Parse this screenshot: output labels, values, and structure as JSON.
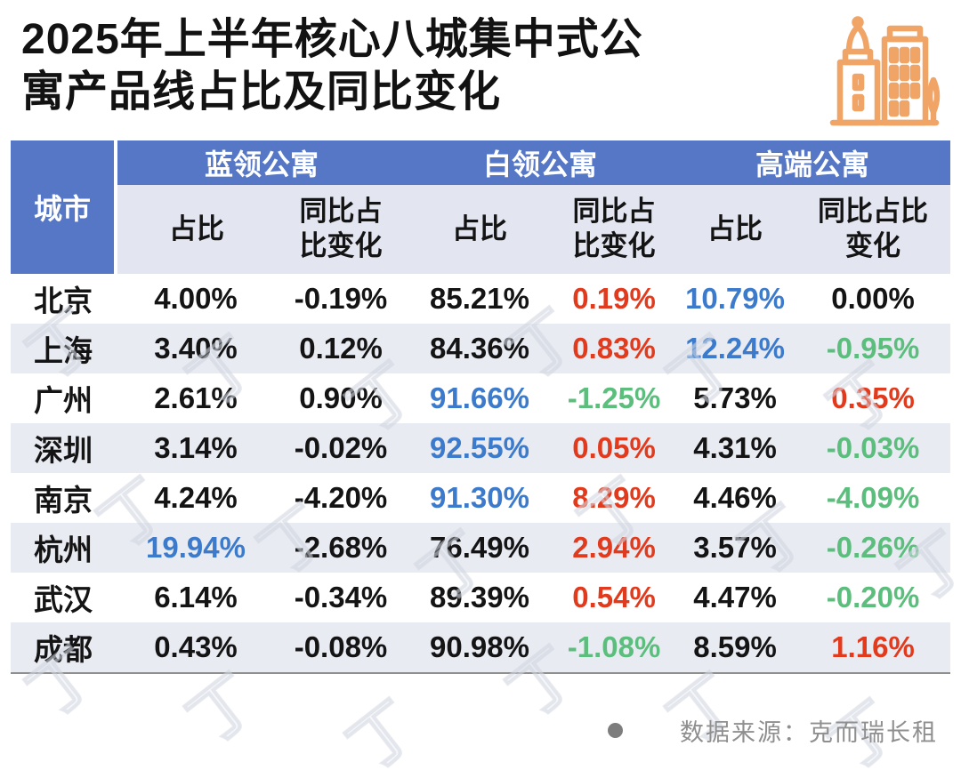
{
  "title": "2025年上半年核心八城集中式公\n寓产品线占比及同比变化",
  "header_icon": "city-buildings-icon",
  "colors": {
    "header_blue": "#5677C5",
    "subheader_bg": "#E3E6F0",
    "alt_row_bg": "#E9EBF3",
    "black": "#141414",
    "red": "#E23A1D",
    "blue": "#3C7BCC",
    "green": "#5CBE7D",
    "icon_orange": "#F0A466",
    "footer_gray": "#8f8f8f"
  },
  "table": {
    "corner_label": "城市",
    "groups": [
      {
        "label": "蓝领公寓"
      },
      {
        "label": "白领公寓"
      },
      {
        "label": "高端公寓"
      }
    ],
    "sub_columns": [
      "占比",
      "同比占比变化",
      "占比",
      "同比占比变化",
      "占比",
      "同比占比变化"
    ],
    "rows": [
      {
        "city": "北京",
        "cells": [
          {
            "v": "4.00%",
            "c": "black"
          },
          {
            "v": "-0.19%",
            "c": "black"
          },
          {
            "v": "85.21%",
            "c": "black"
          },
          {
            "v": "0.19%",
            "c": "red"
          },
          {
            "v": "10.79%",
            "c": "blue"
          },
          {
            "v": "0.00%",
            "c": "black"
          }
        ]
      },
      {
        "city": "上海",
        "cells": [
          {
            "v": "3.40%",
            "c": "black"
          },
          {
            "v": "0.12%",
            "c": "black"
          },
          {
            "v": "84.36%",
            "c": "black"
          },
          {
            "v": "0.83%",
            "c": "red"
          },
          {
            "v": "12.24%",
            "c": "blue"
          },
          {
            "v": "-0.95%",
            "c": "green"
          }
        ]
      },
      {
        "city": "广州",
        "cells": [
          {
            "v": "2.61%",
            "c": "black"
          },
          {
            "v": "0.90%",
            "c": "black"
          },
          {
            "v": "91.66%",
            "c": "blue"
          },
          {
            "v": "-1.25%",
            "c": "green"
          },
          {
            "v": "5.73%",
            "c": "black"
          },
          {
            "v": "0.35%",
            "c": "red"
          }
        ]
      },
      {
        "city": "深圳",
        "cells": [
          {
            "v": "3.14%",
            "c": "black"
          },
          {
            "v": "-0.02%",
            "c": "black"
          },
          {
            "v": "92.55%",
            "c": "blue"
          },
          {
            "v": "0.05%",
            "c": "red"
          },
          {
            "v": "4.31%",
            "c": "black"
          },
          {
            "v": "-0.03%",
            "c": "green"
          }
        ]
      },
      {
        "city": "南京",
        "cells": [
          {
            "v": "4.24%",
            "c": "black"
          },
          {
            "v": "-4.20%",
            "c": "black"
          },
          {
            "v": "91.30%",
            "c": "blue"
          },
          {
            "v": "8.29%",
            "c": "red"
          },
          {
            "v": "4.46%",
            "c": "black"
          },
          {
            "v": "-4.09%",
            "c": "green"
          }
        ]
      },
      {
        "city": "杭州",
        "cells": [
          {
            "v": "19.94%",
            "c": "blue"
          },
          {
            "v": "-2.68%",
            "c": "black"
          },
          {
            "v": "76.49%",
            "c": "black"
          },
          {
            "v": "2.94%",
            "c": "red"
          },
          {
            "v": "3.57%",
            "c": "black"
          },
          {
            "v": "-0.26%",
            "c": "green"
          }
        ]
      },
      {
        "city": "武汉",
        "cells": [
          {
            "v": "6.14%",
            "c": "black"
          },
          {
            "v": "-0.34%",
            "c": "black"
          },
          {
            "v": "89.39%",
            "c": "black"
          },
          {
            "v": "0.54%",
            "c": "red"
          },
          {
            "v": "4.47%",
            "c": "black"
          },
          {
            "v": "-0.20%",
            "c": "green"
          }
        ]
      },
      {
        "city": "成都",
        "cells": [
          {
            "v": "0.43%",
            "c": "black"
          },
          {
            "v": "-0.08%",
            "c": "black"
          },
          {
            "v": "90.98%",
            "c": "black"
          },
          {
            "v": "-1.08%",
            "c": "green"
          },
          {
            "v": "8.59%",
            "c": "black"
          },
          {
            "v": "1.16%",
            "c": "red"
          }
        ]
      }
    ]
  },
  "footer": {
    "bullet": "●",
    "source": "数据来源：克而瑞长租"
  },
  "watermark": {
    "glyph": "丁"
  },
  "chart_data": {
    "type": "table",
    "title": "2025年上半年核心八城集中式公寓产品线占比及同比变化",
    "column_groups": [
      "蓝领公寓",
      "白领公寓",
      "高端公寓"
    ],
    "columns": [
      "城市",
      "蓝领公寓-占比(%)",
      "蓝领公寓-同比占比变化(%)",
      "白领公寓-占比(%)",
      "白领公寓-同比占比变化(%)",
      "高端公寓-占比(%)",
      "高端公寓-同比占比变化(%)"
    ],
    "rows": [
      [
        "北京",
        4.0,
        -0.19,
        85.21,
        0.19,
        10.79,
        0.0
      ],
      [
        "上海",
        3.4,
        0.12,
        84.36,
        0.83,
        12.24,
        -0.95
      ],
      [
        "广州",
        2.61,
        0.9,
        91.66,
        -1.25,
        5.73,
        0.35
      ],
      [
        "深圳",
        3.14,
        -0.02,
        92.55,
        0.05,
        4.31,
        -0.03
      ],
      [
        "南京",
        4.24,
        -4.2,
        91.3,
        8.29,
        4.46,
        -4.09
      ],
      [
        "杭州",
        19.94,
        -2.68,
        76.49,
        2.94,
        3.57,
        -0.26
      ],
      [
        "武汉",
        6.14,
        -0.34,
        89.39,
        0.54,
        4.47,
        -0.2
      ],
      [
        "成都",
        0.43,
        -0.08,
        90.98,
        -1.08,
        8.59,
        1.16
      ]
    ],
    "source": "克而瑞长租"
  }
}
